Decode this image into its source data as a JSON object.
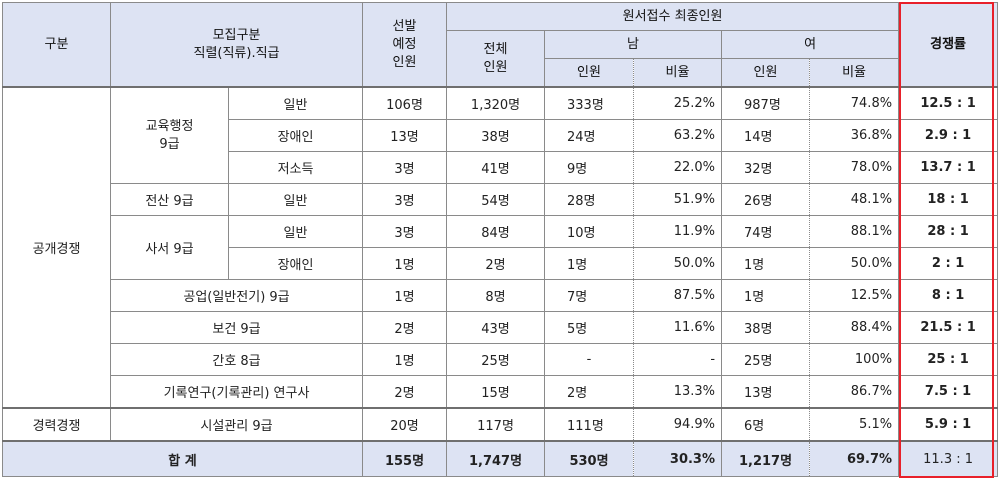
{
  "header": {
    "col_category": "구분",
    "col_recruit": "모집구분",
    "col_recruit_sub": "직렬(직류).직급",
    "col_planned": "선발\n예정\n인원",
    "col_applicants": "원서접수 최종인원",
    "col_total": "전체\n인원",
    "col_male": "남",
    "col_female": "여",
    "col_count": "인원",
    "col_ratio": "비율",
    "col_competition": "경쟁률"
  },
  "groups": {
    "open": "공개경쟁",
    "career": "경력경쟁",
    "edu": "교육행정\n9급",
    "comp": "전산 9급",
    "lib": "사서 9급"
  },
  "rows": [
    {
      "type": "일반",
      "planned": "106명",
      "total": "1,320명",
      "m_count": "333명",
      "m_ratio": "25.2%",
      "f_count": "987명",
      "f_ratio": "74.8%",
      "competition": "12.5 : 1"
    },
    {
      "type": "장애인",
      "planned": "13명",
      "total": "38명",
      "m_count": "24명",
      "m_ratio": "63.2%",
      "f_count": "14명",
      "f_ratio": "36.8%",
      "competition": "2.9 : 1"
    },
    {
      "type": "저소득",
      "planned": "3명",
      "total": "41명",
      "m_count": "9명",
      "m_ratio": "22.0%",
      "f_count": "32명",
      "f_ratio": "78.0%",
      "competition": "13.7 : 1"
    },
    {
      "type": "일반",
      "planned": "3명",
      "total": "54명",
      "m_count": "28명",
      "m_ratio": "51.9%",
      "f_count": "26명",
      "f_ratio": "48.1%",
      "competition": "18 : 1"
    },
    {
      "type": "일반",
      "planned": "3명",
      "total": "84명",
      "m_count": "10명",
      "m_ratio": "11.9%",
      "f_count": "74명",
      "f_ratio": "88.1%",
      "competition": "28 : 1"
    },
    {
      "type": "장애인",
      "planned": "1명",
      "total": "2명",
      "m_count": "1명",
      "m_ratio": "50.0%",
      "f_count": "1명",
      "f_ratio": "50.0%",
      "competition": "2 : 1"
    },
    {
      "type": "공업(일반전기) 9급",
      "planned": "1명",
      "total": "8명",
      "m_count": "7명",
      "m_ratio": "87.5%",
      "f_count": "1명",
      "f_ratio": "12.5%",
      "competition": "8 : 1"
    },
    {
      "type": "보건 9급",
      "planned": "2명",
      "total": "43명",
      "m_count": "5명",
      "m_ratio": "11.6%",
      "f_count": "38명",
      "f_ratio": "88.4%",
      "competition": "21.5 : 1"
    },
    {
      "type": "간호 8급",
      "planned": "1명",
      "total": "25명",
      "m_count": "-",
      "m_ratio": "-",
      "f_count": "25명",
      "f_ratio": "100%",
      "competition": "25 : 1"
    },
    {
      "type": "기록연구(기록관리) 연구사",
      "planned": "2명",
      "total": "15명",
      "m_count": "2명",
      "m_ratio": "13.3%",
      "f_count": "13명",
      "f_ratio": "86.7%",
      "competition": "7.5 : 1"
    },
    {
      "type": "시설관리 9급",
      "planned": "20명",
      "total": "117명",
      "m_count": "111명",
      "m_ratio": "94.9%",
      "f_count": "6명",
      "f_ratio": "5.1%",
      "competition": "5.9 : 1"
    }
  ],
  "total": {
    "label": "합 계",
    "planned": "155명",
    "total": "1,747명",
    "m_count": "530명",
    "m_ratio": "30.3%",
    "f_count": "1,217명",
    "f_ratio": "69.7%",
    "competition": "11.3 : 1"
  },
  "highlight_color": "#e8202a",
  "header_bg": "#dde3f3"
}
